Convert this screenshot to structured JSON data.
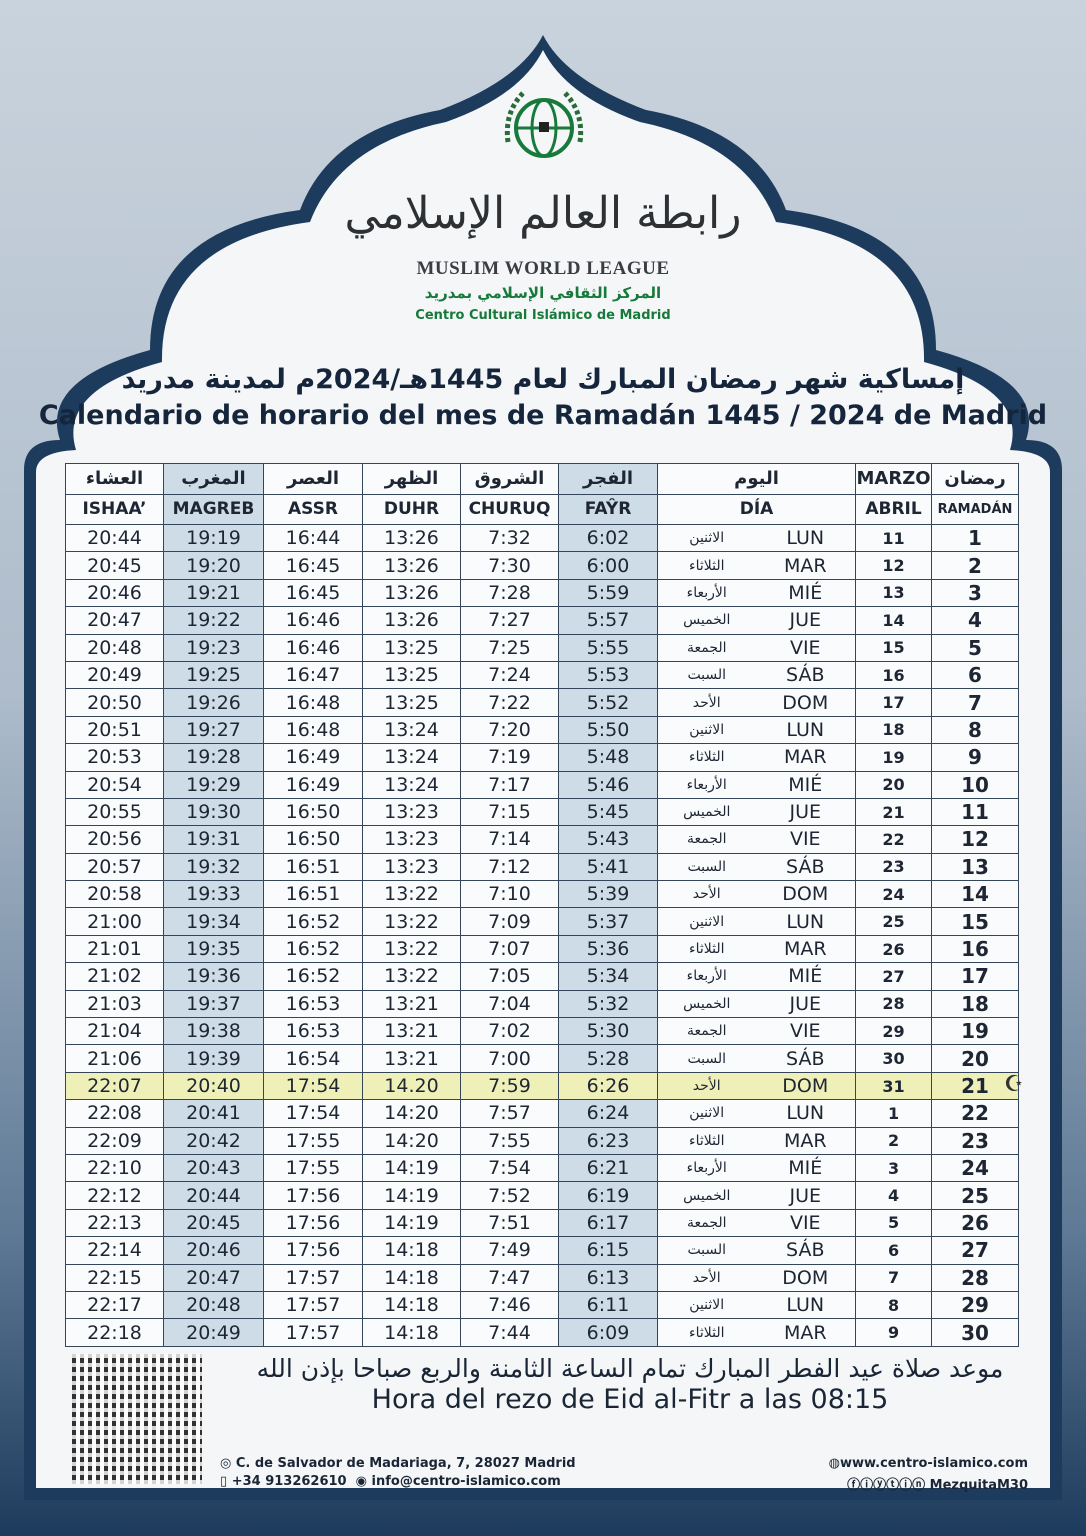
{
  "logo": {
    "arabic_name": "رابطة العالم الإسلامي",
    "english_name": "MUSLIM WORLD LEAGUE",
    "centre_ar": "المركز الثقافي الإسلامي بمدريد",
    "centre_es": "Centro Cultural Islámico de Madrid"
  },
  "title": {
    "ar": "إمساكية شهر رمضان المبارك لعام 1445هـ/2024م لمدينة مدريد",
    "es": "Calendario de horario del mes de Ramadán 1445 / 2024  de Madrid"
  },
  "headers": {
    "ar": [
      "العشاء",
      "المغرب",
      "العصر",
      "الظهر",
      "الشروق",
      "الفجر",
      "اليوم",
      "MARZO",
      "رمضان"
    ],
    "es": [
      "ISHAA’",
      "MAGREB",
      "ASSR",
      "DUHR",
      "CHURUQ",
      "FAŶR",
      "DÍA",
      "ABRIL",
      "RAMADÁN"
    ]
  },
  "rows": [
    [
      "20:44",
      "19:19",
      "16:44",
      "13:26",
      "7:32",
      "6:02",
      "الاثنين",
      "LUN",
      "11",
      "1"
    ],
    [
      "20:45",
      "19:20",
      "16:45",
      "13:26",
      "7:30",
      "6:00",
      "الثلاثاء",
      "MAR",
      "12",
      "2"
    ],
    [
      "20:46",
      "19:21",
      "16:45",
      "13:26",
      "7:28",
      "5:59",
      "الأربعاء",
      "MIÉ",
      "13",
      "3"
    ],
    [
      "20:47",
      "19:22",
      "16:46",
      "13:26",
      "7:27",
      "5:57",
      "الخميس",
      "JUE",
      "14",
      "4"
    ],
    [
      "20:48",
      "19:23",
      "16:46",
      "13:25",
      "7:25",
      "5:55",
      "الجمعة",
      "VIE",
      "15",
      "5"
    ],
    [
      "20:49",
      "19:25",
      "16:47",
      "13:25",
      "7:24",
      "5:53",
      "السبت",
      "SÁB",
      "16",
      "6"
    ],
    [
      "20:50",
      "19:26",
      "16:48",
      "13:25",
      "7:22",
      "5:52",
      "الأحد",
      "DOM",
      "17",
      "7"
    ],
    [
      "20:51",
      "19:27",
      "16:48",
      "13:24",
      "7:20",
      "5:50",
      "الاثنين",
      "LUN",
      "18",
      "8"
    ],
    [
      "20:53",
      "19:28",
      "16:49",
      "13:24",
      "7:19",
      "5:48",
      "الثلاثاء",
      "MAR",
      "19",
      "9"
    ],
    [
      "20:54",
      "19:29",
      "16:49",
      "13:24",
      "7:17",
      "5:46",
      "الأربعاء",
      "MIÉ",
      "20",
      "10"
    ],
    [
      "20:55",
      "19:30",
      "16:50",
      "13:23",
      "7:15",
      "5:45",
      "الخميس",
      "JUE",
      "21",
      "11"
    ],
    [
      "20:56",
      "19:31",
      "16:50",
      "13:23",
      "7:14",
      "5:43",
      "الجمعة",
      "VIE",
      "22",
      "12"
    ],
    [
      "20:57",
      "19:32",
      "16:51",
      "13:23",
      "7:12",
      "5:41",
      "السبت",
      "SÁB",
      "23",
      "13"
    ],
    [
      "20:58",
      "19:33",
      "16:51",
      "13:22",
      "7:10",
      "5:39",
      "الأحد",
      "DOM",
      "24",
      "14"
    ],
    [
      "21:00",
      "19:34",
      "16:52",
      "13:22",
      "7:09",
      "5:37",
      "الاثنين",
      "LUN",
      "25",
      "15"
    ],
    [
      "21:01",
      "19:35",
      "16:52",
      "13:22",
      "7:07",
      "5:36",
      "الثلاثاء",
      "MAR",
      "26",
      "16"
    ],
    [
      "21:02",
      "19:36",
      "16:52",
      "13:22",
      "7:05",
      "5:34",
      "الأربعاء",
      "MIÉ",
      "27",
      "17"
    ],
    [
      "21:03",
      "19:37",
      "16:53",
      "13:21",
      "7:04",
      "5:32",
      "الخميس",
      "JUE",
      "28",
      "18"
    ],
    [
      "21:04",
      "19:38",
      "16:53",
      "13:21",
      "7:02",
      "5:30",
      "الجمعة",
      "VIE",
      "29",
      "19"
    ],
    [
      "21:06",
      "19:39",
      "16:54",
      "13:21",
      "7:00",
      "5:28",
      "السبت",
      "SÁB",
      "30",
      "20"
    ],
    [
      "22:07",
      "20:40",
      "17:54",
      "14.20",
      "7:59",
      "6:26",
      "الأحد",
      "DOM",
      "31",
      "21"
    ],
    [
      "22:08",
      "20:41",
      "17:54",
      "14:20",
      "7:57",
      "6:24",
      "الاثنين",
      "LUN",
      "1",
      "22"
    ],
    [
      "22:09",
      "20:42",
      "17:55",
      "14:20",
      "7:55",
      "6:23",
      "الثلاثاء",
      "MAR",
      "2",
      "23"
    ],
    [
      "22:10",
      "20:43",
      "17:55",
      "14:19",
      "7:54",
      "6:21",
      "الأربعاء",
      "MIÉ",
      "3",
      "24"
    ],
    [
      "22:12",
      "20:44",
      "17:56",
      "14:19",
      "7:52",
      "6:19",
      "الخميس",
      "JUE",
      "4",
      "25"
    ],
    [
      "22:13",
      "20:45",
      "17:56",
      "14:19",
      "7:51",
      "6:17",
      "الجمعة",
      "VIE",
      "5",
      "26"
    ],
    [
      "22:14",
      "20:46",
      "17:56",
      "14:18",
      "7:49",
      "6:15",
      "السبت",
      "SÁB",
      "6",
      "27"
    ],
    [
      "22:15",
      "20:47",
      "17:57",
      "14:18",
      "7:47",
      "6:13",
      "الأحد",
      "DOM",
      "7",
      "28"
    ],
    [
      "22:17",
      "20:48",
      "17:57",
      "14:18",
      "7:46",
      "6:11",
      "الاثنين",
      "LUN",
      "8",
      "29"
    ],
    [
      "22:18",
      "20:49",
      "17:57",
      "14:18",
      "7:44",
      "6:09",
      "الثلاثاء",
      "MAR",
      "9",
      "30"
    ]
  ],
  "highlight_row_ramadan_day": "21",
  "eid": {
    "ar": "موعد صلاة عيد الفطر المبارك  تمام الساعة الثامنة والربع صباحا بإذن الله",
    "es": "Hora del rezo de Eid al-Fitr a las 08:15"
  },
  "footer": {
    "address": "C. de Salvador de Madariaga, 7, 28027 Madrid",
    "phone": "+34 913262610",
    "email": "info@centro-islamico.com",
    "website": "www.centro-islamico.com",
    "social": "MezquitaM30"
  },
  "colors": {
    "navy": "#1d3b5c",
    "green": "#177a3b",
    "highlight": "#eef0b8"
  }
}
